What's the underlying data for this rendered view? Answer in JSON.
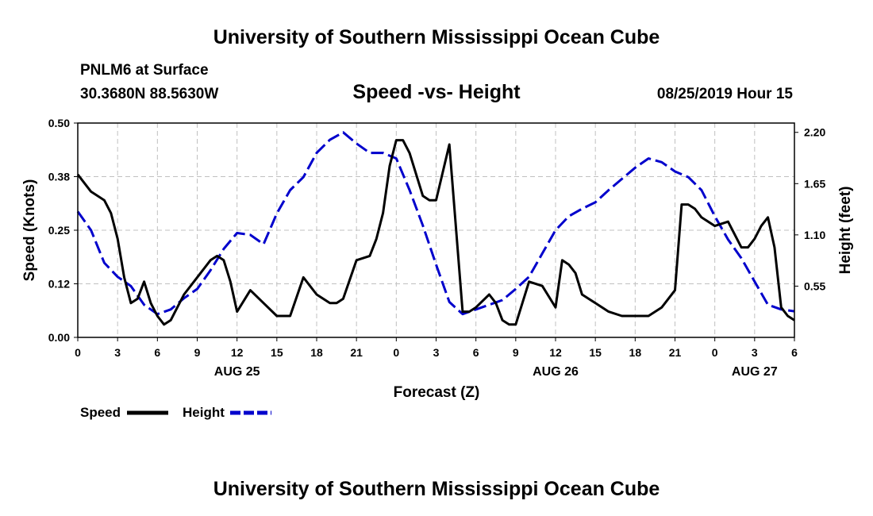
{
  "header": {
    "title_top": "University of Southern Mississippi Ocean Cube",
    "station": "PNLM6 at Surface",
    "coords": "30.3680N 88.5630W",
    "chart_title": "Speed -vs- Height",
    "datetime": "08/25/2019 Hour 15",
    "title_bottom": "University of Southern Mississippi Ocean Cube"
  },
  "colors": {
    "speed": "#000000",
    "height": "#0000cc",
    "grid": "#c0c0c0"
  },
  "chart_data": {
    "type": "line",
    "title": "Speed -vs- Height",
    "xlabel": "Forecast (Z)",
    "ylabel": "Speed (Knots)",
    "y2label": "Height (feet)",
    "x_range": [
      0,
      54
    ],
    "x_ticks": [
      0,
      3,
      6,
      9,
      12,
      15,
      18,
      21,
      24,
      27,
      30,
      33,
      36,
      39,
      42,
      45,
      48,
      51,
      54
    ],
    "x_tick_labels": [
      "0",
      "3",
      "6",
      "9",
      "12",
      "15",
      "18",
      "21",
      "0",
      "3",
      "6",
      "9",
      "12",
      "15",
      "18",
      "21",
      "0",
      "3",
      "6"
    ],
    "date_labels": [
      {
        "x": 12,
        "text": "AUG 25"
      },
      {
        "x": 36,
        "text": "AUG 26"
      },
      {
        "x": 51,
        "text": "AUG 27"
      }
    ],
    "ylim": [
      0,
      0.5
    ],
    "y_ticks": [
      0,
      0.125,
      0.25,
      0.375,
      0.5
    ],
    "y_tick_labels": [
      "0.00",
      "0.12",
      "0.25",
      "0.38",
      "0.50"
    ],
    "y2lim": [
      0,
      2.3
    ],
    "y2_ticks": [
      0.55,
      1.1,
      1.65,
      2.2
    ],
    "y2_tick_labels": [
      "0.55",
      "1.10",
      "1.65",
      "2.20"
    ],
    "series": [
      {
        "name": "Speed",
        "axis": "left",
        "style": "solid",
        "x": [
          0,
          1,
          2,
          2.5,
          3,
          3.5,
          4,
          4.5,
          5,
          5.5,
          6,
          6.5,
          7,
          8,
          9,
          10,
          10.5,
          11,
          11.5,
          12,
          13,
          14,
          15,
          15.5,
          16,
          17,
          18,
          19,
          19.5,
          20,
          21,
          22,
          22.5,
          23,
          23.5,
          24,
          24.5,
          25,
          26,
          26.5,
          27,
          28,
          29,
          29.5,
          30,
          31,
          31.5,
          32,
          32.5,
          33,
          34,
          35,
          36,
          36.5,
          37,
          37.5,
          38,
          39,
          40,
          41,
          42,
          43,
          44,
          45,
          45.5,
          46,
          46.5,
          47,
          48,
          49,
          50,
          50.5,
          51,
          51.5,
          52,
          52.5,
          53,
          53.5,
          54
        ],
        "values": [
          0.38,
          0.34,
          0.32,
          0.29,
          0.23,
          0.14,
          0.08,
          0.09,
          0.13,
          0.08,
          0.05,
          0.03,
          0.04,
          0.1,
          0.14,
          0.18,
          0.19,
          0.18,
          0.13,
          0.06,
          0.11,
          0.08,
          0.05,
          0.05,
          0.05,
          0.14,
          0.1,
          0.08,
          0.08,
          0.09,
          0.18,
          0.19,
          0.23,
          0.29,
          0.4,
          0.46,
          0.46,
          0.43,
          0.33,
          0.32,
          0.32,
          0.45,
          0.06,
          0.06,
          0.07,
          0.1,
          0.08,
          0.04,
          0.03,
          0.03,
          0.13,
          0.12,
          0.07,
          0.18,
          0.17,
          0.15,
          0.1,
          0.08,
          0.06,
          0.05,
          0.05,
          0.05,
          0.07,
          0.11,
          0.31,
          0.31,
          0.3,
          0.28,
          0.26,
          0.27,
          0.21,
          0.21,
          0.23,
          0.26,
          0.28,
          0.21,
          0.07,
          0.05,
          0.04
        ]
      },
      {
        "name": "Height",
        "axis": "right",
        "style": "dashed",
        "x": [
          0,
          1,
          2,
          3,
          4,
          5,
          6,
          7,
          8,
          9,
          10,
          11,
          12,
          13,
          14,
          15,
          16,
          17,
          18,
          19,
          20,
          21,
          22,
          23,
          24,
          25,
          26,
          27,
          28,
          29,
          30,
          31,
          32,
          33,
          34,
          35,
          36,
          37,
          38,
          39,
          40,
          41,
          42,
          43,
          44,
          45,
          46,
          47,
          48,
          49,
          50,
          51,
          52,
          53,
          54
        ],
        "values": [
          1.35,
          1.15,
          0.8,
          0.65,
          0.55,
          0.35,
          0.25,
          0.3,
          0.42,
          0.52,
          0.72,
          0.95,
          1.12,
          1.1,
          1.0,
          1.33,
          1.58,
          1.72,
          1.98,
          2.12,
          2.2,
          2.08,
          1.98,
          1.98,
          1.92,
          1.58,
          1.2,
          0.78,
          0.38,
          0.25,
          0.3,
          0.35,
          0.4,
          0.52,
          0.65,
          0.9,
          1.15,
          1.3,
          1.38,
          1.45,
          1.58,
          1.7,
          1.82,
          1.92,
          1.88,
          1.78,
          1.72,
          1.58,
          1.3,
          1.05,
          0.85,
          0.6,
          0.35,
          0.3,
          0.28
        ]
      }
    ],
    "legend": [
      {
        "name": "Speed",
        "style": "solid"
      },
      {
        "name": "Height",
        "style": "dashed"
      }
    ],
    "legend_position": "bottom-left"
  }
}
